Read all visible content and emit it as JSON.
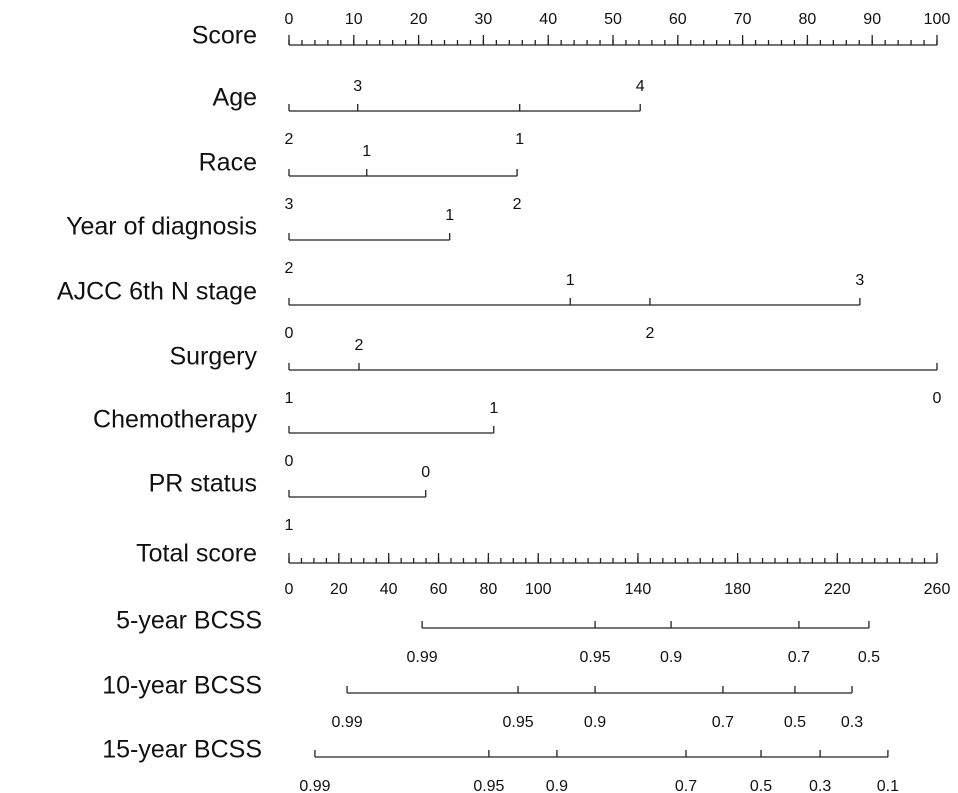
{
  "chart_data": {
    "type": "nomogram",
    "points_axis": {
      "label": "Score",
      "lim": [
        0,
        100
      ],
      "ticks": [
        0,
        10,
        20,
        30,
        40,
        50,
        60,
        70,
        80,
        90,
        100
      ],
      "minor_step": 2
    },
    "variables": [
      {
        "name": "Age",
        "levels": [
          {
            "label": "2",
            "points": 0
          },
          {
            "label": "3",
            "points": 10.6
          },
          {
            "label": "1",
            "points": 35.6
          },
          {
            "label": "4",
            "points": 54.2
          }
        ]
      },
      {
        "name": "Race",
        "levels": [
          {
            "label": "3",
            "points": 0
          },
          {
            "label": "1",
            "points": 12.0
          },
          {
            "label": "2",
            "points": 35.2
          }
        ]
      },
      {
        "name": "Year of diagnosis",
        "levels": [
          {
            "label": "2",
            "points": 0
          },
          {
            "label": "1",
            "points": 24.8
          }
        ]
      },
      {
        "name": "AJCC 6th N stage",
        "levels": [
          {
            "label": "0",
            "points": 0
          },
          {
            "label": "1",
            "points": 43.4
          },
          {
            "label": "2",
            "points": 55.7
          },
          {
            "label": "3",
            "points": 88.1
          }
        ]
      },
      {
        "name": "Surgery",
        "levels": [
          {
            "label": "1",
            "points": 0
          },
          {
            "label": "2",
            "points": 10.8
          },
          {
            "label": "0",
            "points": 100
          }
        ]
      },
      {
        "name": "Chemotherapy",
        "levels": [
          {
            "label": "0",
            "points": 0
          },
          {
            "label": "1",
            "points": 31.6
          }
        ]
      },
      {
        "name": "PR status",
        "levels": [
          {
            "label": "1",
            "points": 0
          },
          {
            "label": "0",
            "points": 21.1
          }
        ]
      }
    ],
    "total_axis": {
      "label": "Total score",
      "lim": [
        0,
        260
      ],
      "ticks": [
        0,
        20,
        40,
        60,
        80,
        100,
        140,
        180,
        220,
        260
      ],
      "minor_step": 5
    },
    "outcomes": [
      {
        "name": "5-year BCSS",
        "ticks": [
          {
            "value": 0.99,
            "points": 53.4
          },
          {
            "value": 0.95,
            "points": 122.8
          },
          {
            "value": 0.9,
            "points": 153.3
          },
          {
            "value": 0.7,
            "points": 204.6
          },
          {
            "value": 0.5,
            "points": 232.7
          }
        ]
      },
      {
        "name": "10-year BCSS",
        "ticks": [
          {
            "value": 0.99,
            "points": 23.3
          },
          {
            "value": 0.95,
            "points": 91.9
          },
          {
            "value": 0.9,
            "points": 122.8
          },
          {
            "value": 0.7,
            "points": 174.1
          },
          {
            "value": 0.5,
            "points": 203.0
          },
          {
            "value": 0.3,
            "points": 225.9
          }
        ]
      },
      {
        "name": "15-year BCSS",
        "ticks": [
          {
            "value": 0.99,
            "points": 10.4
          },
          {
            "value": 0.95,
            "points": 80.2
          },
          {
            "value": 0.9,
            "points": 107.5
          },
          {
            "value": 0.7,
            "points": 159.3
          },
          {
            "value": 0.5,
            "points": 189.4
          },
          {
            "value": 0.3,
            "points": 213.1
          },
          {
            "value": 0.1,
            "points": 240.3
          }
        ]
      }
    ]
  }
}
